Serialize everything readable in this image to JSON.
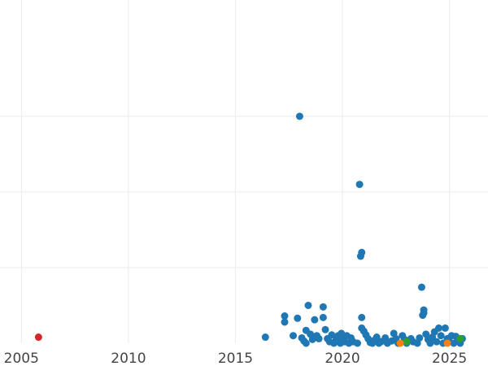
{
  "chart_data": {
    "type": "scatter",
    "title": "",
    "xlabel": "",
    "ylabel": "",
    "xlim": [
      2004.0,
      2026.8
    ],
    "ylim": [
      0,
      4.0
    ],
    "x_ticks": [
      2005,
      2010,
      2015,
      2020,
      2025
    ],
    "x_tick_labels": [
      "2005",
      "2010",
      "2015",
      "2020",
      "2025"
    ],
    "y_gridlines": [
      1,
      2,
      3
    ],
    "grid": true,
    "legend": "none",
    "series": [
      {
        "color": "#1f77b4",
        "points": [
          [
            2016.4,
            0.08
          ],
          [
            2017.3,
            0.28
          ],
          [
            2017.3,
            0.36
          ],
          [
            2017.7,
            0.1
          ],
          [
            2017.9,
            0.33
          ],
          [
            2018.0,
            3.0
          ],
          [
            2018.1,
            0.07
          ],
          [
            2018.2,
            0.03
          ],
          [
            2018.3,
            0.0
          ],
          [
            2018.3,
            0.17
          ],
          [
            2018.4,
            0.5
          ],
          [
            2018.5,
            0.12
          ],
          [
            2018.6,
            0.05
          ],
          [
            2018.7,
            0.31
          ],
          [
            2018.8,
            0.1
          ],
          [
            2018.9,
            0.06
          ],
          [
            2019.1,
            0.48
          ],
          [
            2019.1,
            0.34
          ],
          [
            2019.2,
            0.18
          ],
          [
            2019.3,
            0.06
          ],
          [
            2019.4,
            0.02
          ],
          [
            2019.5,
            0.11
          ],
          [
            2019.6,
            0.0
          ],
          [
            2019.7,
            0.04
          ],
          [
            2019.8,
            0.1
          ],
          [
            2019.9,
            0.0
          ],
          [
            2019.95,
            0.13
          ],
          [
            2020.0,
            0.06
          ],
          [
            2020.1,
            0.02
          ],
          [
            2020.2,
            0.1
          ],
          [
            2020.3,
            0.0
          ],
          [
            2020.4,
            0.07
          ],
          [
            2020.5,
            0.02
          ],
          [
            2020.7,
            0.0
          ],
          [
            2020.9,
            1.2
          ],
          [
            2020.85,
            1.15
          ],
          [
            2020.8,
            2.1
          ],
          [
            2020.9,
            0.34
          ],
          [
            2020.9,
            0.2
          ],
          [
            2021.0,
            0.16
          ],
          [
            2021.1,
            0.11
          ],
          [
            2021.2,
            0.06
          ],
          [
            2021.3,
            0.01
          ],
          [
            2021.4,
            0.0
          ],
          [
            2021.5,
            0.04
          ],
          [
            2021.6,
            0.08
          ],
          [
            2021.7,
            0.0
          ],
          [
            2021.8,
            0.02
          ],
          [
            2022.0,
            0.07
          ],
          [
            2022.1,
            0.0
          ],
          [
            2022.3,
            0.03
          ],
          [
            2022.4,
            0.13
          ],
          [
            2022.5,
            0.06
          ],
          [
            2022.6,
            0.0
          ],
          [
            2022.8,
            0.1
          ],
          [
            2022.9,
            0.05
          ],
          [
            2023.0,
            0.0
          ],
          [
            2023.2,
            0.06
          ],
          [
            2023.3,
            0.02
          ],
          [
            2023.5,
            0.0
          ],
          [
            2023.6,
            0.07
          ],
          [
            2023.7,
            0.74
          ],
          [
            2023.75,
            0.37
          ],
          [
            2023.8,
            0.44
          ],
          [
            2023.8,
            0.4
          ],
          [
            2023.9,
            0.12
          ],
          [
            2024.0,
            0.05
          ],
          [
            2024.1,
            0.0
          ],
          [
            2024.2,
            0.08
          ],
          [
            2024.3,
            0.15
          ],
          [
            2024.4,
            0.02
          ],
          [
            2024.5,
            0.2
          ],
          [
            2024.6,
            0.1
          ],
          [
            2024.7,
            0.0
          ],
          [
            2024.8,
            0.2
          ],
          [
            2024.9,
            0.06
          ],
          [
            2025.0,
            0.02
          ],
          [
            2025.1,
            0.1
          ],
          [
            2025.2,
            0.0
          ],
          [
            2025.3,
            0.09
          ],
          [
            2025.4,
            0.04
          ],
          [
            2025.5,
            0.0
          ],
          [
            2025.6,
            0.06
          ]
        ]
      },
      {
        "color": "#d62728",
        "points": [
          [
            2005.8,
            0.08
          ]
        ]
      },
      {
        "color": "#2ca02c",
        "points": [
          [
            2023.0,
            0.02
          ],
          [
            2025.5,
            0.06
          ]
        ]
      },
      {
        "color": "#ff7f0e",
        "points": [
          [
            2022.7,
            0.0
          ],
          [
            2024.9,
            0.0
          ]
        ]
      }
    ]
  }
}
